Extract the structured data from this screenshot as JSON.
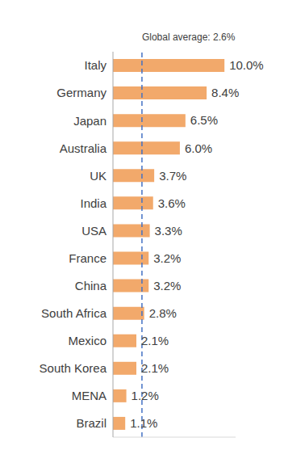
{
  "chart_data": {
    "type": "bar",
    "orientation": "horizontal",
    "categories": [
      "Italy",
      "Germany",
      "Japan",
      "Australia",
      "UK",
      "India",
      "USA",
      "France",
      "China",
      "South Africa",
      "Mexico",
      "South Korea",
      "MENA",
      "Brazil"
    ],
    "values": [
      10.0,
      8.4,
      6.5,
      6.0,
      3.7,
      3.6,
      3.3,
      3.2,
      3.2,
      2.8,
      2.1,
      2.1,
      1.2,
      1.1
    ],
    "value_labels": [
      "10.0%",
      "8.4%",
      "6.5%",
      "6.0%",
      "3.7%",
      "3.6%",
      "3.3%",
      "3.2%",
      "3.2%",
      "2.8%",
      "2.1%",
      "2.1%",
      "1.2%",
      "1.1%"
    ],
    "color": "#f2a96b",
    "xlim": [
      0,
      11
    ],
    "data_labels": true,
    "tick_labels": "y",
    "grid": false,
    "annotations": [
      {
        "text": "Global average: 2.6%",
        "x": 2.6,
        "color": "#4472c4",
        "line_style": "dashed"
      }
    ]
  }
}
